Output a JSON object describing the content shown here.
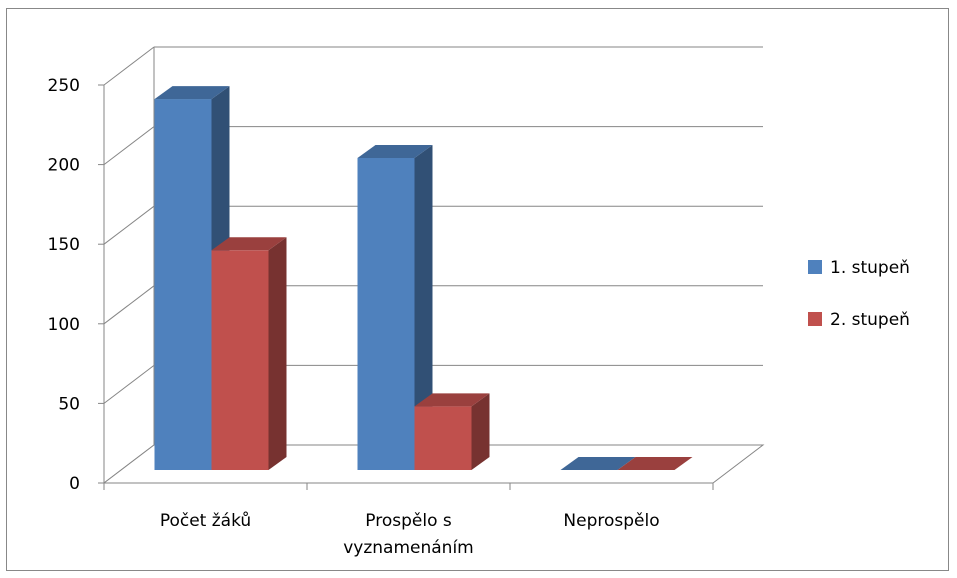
{
  "chart_data": {
    "type": "bar",
    "style": "3d-clustered-column",
    "categories": [
      [
        "Počet žáků"
      ],
      [
        "Prospělo s",
        "vyznamenáním"
      ],
      [
        "Neprospělo"
      ]
    ],
    "series": [
      {
        "name": "1. stupeň",
        "color": "#4F81BD",
        "values": [
          233,
          196,
          0
        ]
      },
      {
        "name": "2. stupeň",
        "color": "#C0504D",
        "values": [
          138,
          40,
          0
        ]
      }
    ],
    "y_ticks": [
      "0",
      "50",
      "100",
      "150",
      "200",
      "250"
    ],
    "ylim": [
      0,
      250
    ],
    "grid": true,
    "legend_position": "right"
  }
}
